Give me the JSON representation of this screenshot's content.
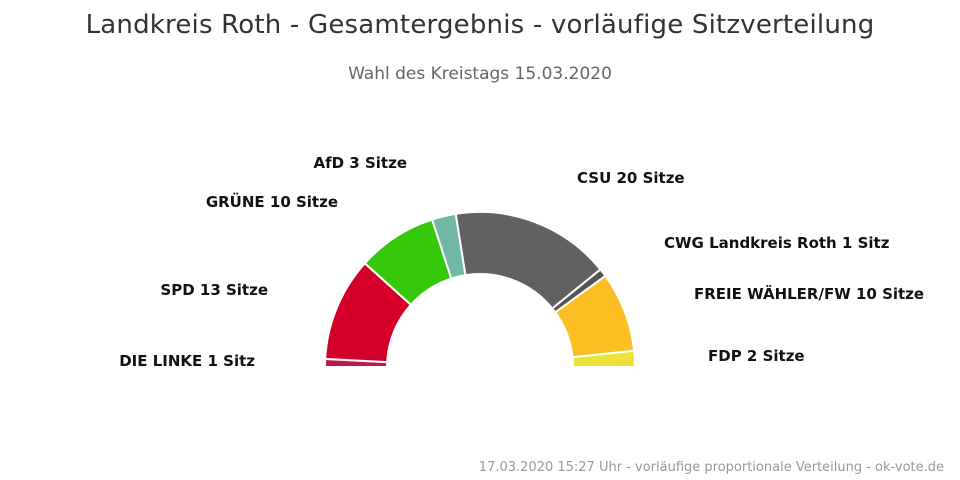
{
  "chart_data": {
    "type": "pie",
    "subtype": "parliament-semicircle",
    "title": "Landkreis Roth - Gesamtergebnis - vorläufige Sitzverteilung",
    "subtitle": "Wahl des Kreistags 15.03.2020",
    "footer": "17.03.2020 15:27 Uhr - vorläufige proportionale Verteilung - ok-vote.de",
    "series": [
      {
        "name": "DIE LINKE",
        "value": 1,
        "label": "DIE LINKE 1 Sitz",
        "color": "#c0174e"
      },
      {
        "name": "SPD",
        "value": 13,
        "label": "SPD 13 Sitze",
        "color": "#d5002a"
      },
      {
        "name": "GRÜNE",
        "value": 10,
        "label": "GRÜNE 10 Sitze",
        "color": "#35c90a"
      },
      {
        "name": "AfD",
        "value": 3,
        "label": "AfD 3 Sitze",
        "color": "#6fb8a5"
      },
      {
        "name": "CSU",
        "value": 20,
        "label": "CSU 20 Sitze",
        "color": "#616161"
      },
      {
        "name": "CWG Landkreis Roth",
        "value": 1,
        "label": "CWG Landkreis Roth 1 Sitz",
        "color": "#555555"
      },
      {
        "name": "FREIE WÄHLER/FW",
        "value": 10,
        "label": "FREIE WÄHLER/FW 10 Sitze",
        "color": "#fbbf24"
      },
      {
        "name": "FDP",
        "value": 2,
        "label": "FDP 2 Sitze",
        "color": "#ede23a"
      }
    ],
    "total_seats": 60
  }
}
